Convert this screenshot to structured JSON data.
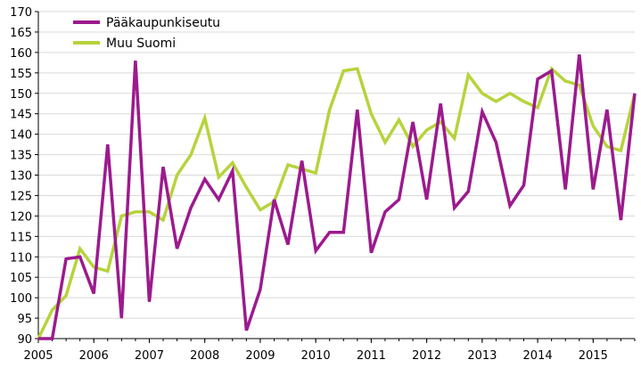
{
  "chart_data": {
    "type": "line",
    "title": "",
    "xlabel": "",
    "ylabel": "",
    "ylim": [
      90,
      170
    ],
    "yticks": [
      90,
      95,
      100,
      105,
      110,
      115,
      120,
      125,
      130,
      135,
      140,
      145,
      150,
      155,
      160,
      165,
      170
    ],
    "xlim": [
      2005,
      2015.75
    ],
    "xticks": [
      "2005",
      "2006",
      "2007",
      "2008",
      "2009",
      "2010",
      "2011",
      "2012",
      "2013",
      "2014",
      "2015"
    ],
    "grid": true,
    "legend": "top-left",
    "x": [
      2005.0,
      2005.25,
      2005.5,
      2005.75,
      2006.0,
      2006.25,
      2006.5,
      2006.75,
      2007.0,
      2007.25,
      2007.5,
      2007.75,
      2008.0,
      2008.25,
      2008.5,
      2008.75,
      2009.0,
      2009.25,
      2009.5,
      2009.75,
      2010.0,
      2010.25,
      2010.5,
      2010.75,
      2011.0,
      2011.25,
      2011.5,
      2011.75,
      2012.0,
      2012.25,
      2012.5,
      2012.75,
      2013.0,
      2013.25,
      2013.5,
      2013.75,
      2014.0,
      2014.25,
      2014.5,
      2014.75,
      2015.0,
      2015.25,
      2015.5,
      2015.75
    ],
    "series": [
      {
        "name": "Pääkaupunkiseutu",
        "color": "#9c1a8e",
        "values": [
          90,
          90,
          109.5,
          110,
          101,
          137.5,
          95,
          158,
          99,
          132,
          112,
          122,
          129,
          124,
          131,
          92,
          102,
          124,
          113,
          133.5,
          111.5,
          116,
          116,
          146,
          111,
          121,
          124,
          143,
          124,
          147.5,
          122,
          126,
          145.5,
          138,
          122.5,
          127.5,
          153.5,
          155.5,
          126.5,
          159.5,
          126.5,
          146,
          119,
          150
        ]
      },
      {
        "name": "Muu Suomi",
        "color": "#b6d33c",
        "values": [
          90,
          97,
          100.5,
          112,
          107.5,
          106.5,
          120,
          121,
          121,
          119,
          130,
          135,
          144,
          129.5,
          133,
          127,
          121.5,
          123.5,
          132.5,
          131.5,
          130.5,
          146,
          155.5,
          156,
          145,
          138,
          143.5,
          137,
          141,
          143,
          139,
          154.5,
          150,
          148,
          150,
          148,
          146.5,
          156,
          153,
          152,
          142,
          137,
          136,
          150
        ]
      }
    ]
  }
}
